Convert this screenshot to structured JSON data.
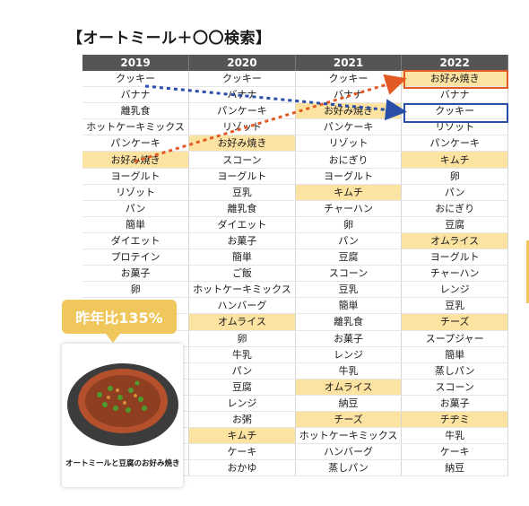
{
  "title": "【オートミール＋〇〇検索】",
  "years": [
    "2019",
    "2020",
    "2021",
    "2022"
  ],
  "colors": {
    "header_bg": "#555555",
    "highlight": "#fde3a1",
    "accent_orange": "#e35a26",
    "accent_blue": "#2a4fa8",
    "badge": "#f0c75c"
  },
  "rows": [
    [
      {
        "t": "クッキー",
        "h": false
      },
      {
        "t": "クッキー",
        "h": false
      },
      {
        "t": "クッキー",
        "h": false
      },
      {
        "t": "お好み焼き",
        "h": true
      }
    ],
    [
      {
        "t": "バナナ",
        "h": false
      },
      {
        "t": "バナナ",
        "h": false
      },
      {
        "t": "バナナ",
        "h": false
      },
      {
        "t": "バナナ",
        "h": false
      }
    ],
    [
      {
        "t": "離乳食",
        "h": false
      },
      {
        "t": "パンケーキ",
        "h": false
      },
      {
        "t": "お好み焼き",
        "h": true
      },
      {
        "t": "クッキー",
        "h": false
      }
    ],
    [
      {
        "t": "ホットケーキミックス",
        "h": false
      },
      {
        "t": "リゾット",
        "h": false
      },
      {
        "t": "パンケーキ",
        "h": false
      },
      {
        "t": "リゾット",
        "h": false
      }
    ],
    [
      {
        "t": "パンケーキ",
        "h": false
      },
      {
        "t": "お好み焼き",
        "h": true
      },
      {
        "t": "リゾット",
        "h": false
      },
      {
        "t": "パンケーキ",
        "h": false
      }
    ],
    [
      {
        "t": "お好み焼き",
        "h": true
      },
      {
        "t": "スコーン",
        "h": false
      },
      {
        "t": "おにぎり",
        "h": false
      },
      {
        "t": "キムチ",
        "h": true
      }
    ],
    [
      {
        "t": "ヨーグルト",
        "h": false
      },
      {
        "t": "ヨーグルト",
        "h": false
      },
      {
        "t": "ヨーグルト",
        "h": false
      },
      {
        "t": "卵",
        "h": false
      }
    ],
    [
      {
        "t": "リゾット",
        "h": false
      },
      {
        "t": "豆乳",
        "h": false
      },
      {
        "t": "キムチ",
        "h": true
      },
      {
        "t": "パン",
        "h": false
      }
    ],
    [
      {
        "t": "パン",
        "h": false
      },
      {
        "t": "離乳食",
        "h": false
      },
      {
        "t": "チャーハン",
        "h": false
      },
      {
        "t": "おにぎり",
        "h": false
      }
    ],
    [
      {
        "t": "簡単",
        "h": false
      },
      {
        "t": "ダイエット",
        "h": false
      },
      {
        "t": "卵",
        "h": false
      },
      {
        "t": "豆腐",
        "h": false
      }
    ],
    [
      {
        "t": "ダイエット",
        "h": false
      },
      {
        "t": "お菓子",
        "h": false
      },
      {
        "t": "パン",
        "h": false
      },
      {
        "t": "オムライス",
        "h": true
      }
    ],
    [
      {
        "t": "プロテイン",
        "h": false
      },
      {
        "t": "簡単",
        "h": false
      },
      {
        "t": "豆腐",
        "h": false
      },
      {
        "t": "ヨーグルト",
        "h": false
      }
    ],
    [
      {
        "t": "お菓子",
        "h": false
      },
      {
        "t": "ご飯",
        "h": false
      },
      {
        "t": "スコーン",
        "h": false
      },
      {
        "t": "チャーハン",
        "h": false
      }
    ],
    [
      {
        "t": "卵",
        "h": false
      },
      {
        "t": "ホットケーキミックス",
        "h": false
      },
      {
        "t": "豆乳",
        "h": false
      },
      {
        "t": "レンジ",
        "h": false
      }
    ],
    [
      {
        "t": "",
        "h": false
      },
      {
        "t": "ハンバーグ",
        "h": false
      },
      {
        "t": "簡単",
        "h": false
      },
      {
        "t": "豆乳",
        "h": false
      }
    ],
    [
      {
        "t": "",
        "h": false
      },
      {
        "t": "オムライス",
        "h": true
      },
      {
        "t": "離乳食",
        "h": false
      },
      {
        "t": "チーズ",
        "h": true
      }
    ],
    [
      {
        "t": "",
        "h": false
      },
      {
        "t": "卵",
        "h": false
      },
      {
        "t": "お菓子",
        "h": false
      },
      {
        "t": "スープジャー",
        "h": false
      }
    ],
    [
      {
        "t": "",
        "h": false
      },
      {
        "t": "牛乳",
        "h": false
      },
      {
        "t": "レンジ",
        "h": false
      },
      {
        "t": "簡単",
        "h": false
      }
    ],
    [
      {
        "t": "",
        "h": false
      },
      {
        "t": "パン",
        "h": false
      },
      {
        "t": "牛乳",
        "h": false
      },
      {
        "t": "蒸しパン",
        "h": false
      }
    ],
    [
      {
        "t": "",
        "h": false
      },
      {
        "t": "豆腐",
        "h": false
      },
      {
        "t": "オムライス",
        "h": true
      },
      {
        "t": "スコーン",
        "h": false
      }
    ],
    [
      {
        "t": "",
        "h": false
      },
      {
        "t": "レンジ",
        "h": false
      },
      {
        "t": "納豆",
        "h": false
      },
      {
        "t": "お菓子",
        "h": false
      }
    ],
    [
      {
        "t": "",
        "h": false
      },
      {
        "t": "お粥",
        "h": false
      },
      {
        "t": "チーズ",
        "h": true
      },
      {
        "t": "チヂミ",
        "h": true
      }
    ],
    [
      {
        "t": "",
        "h": false
      },
      {
        "t": "キムチ",
        "h": true
      },
      {
        "t": "ホットケーキミックス",
        "h": false
      },
      {
        "t": "牛乳",
        "h": false
      }
    ],
    [
      {
        "t": "",
        "h": false
      },
      {
        "t": "ケーキ",
        "h": false
      },
      {
        "t": "ハンバーグ",
        "h": false
      },
      {
        "t": "ケーキ",
        "h": false
      }
    ],
    [
      {
        "t": "",
        "h": false
      },
      {
        "t": "おかゆ",
        "h": false
      },
      {
        "t": "蒸しパン",
        "h": false
      },
      {
        "t": "納豆",
        "h": false
      }
    ]
  ],
  "badge_text": "昨年比135%",
  "caption": "オートミールと豆腐のお好み焼き"
}
